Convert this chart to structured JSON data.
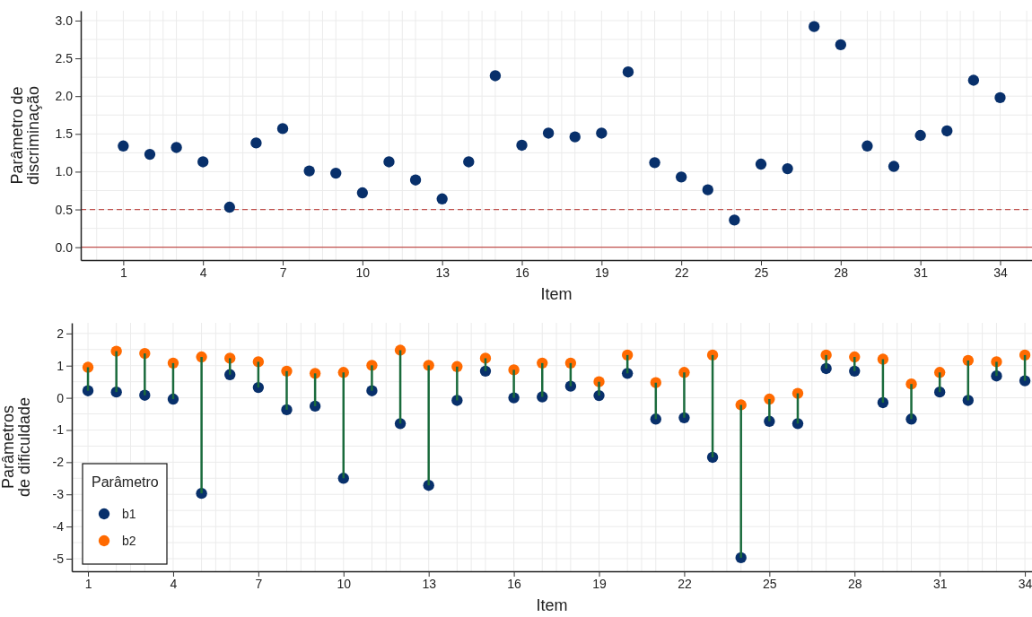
{
  "chart_data": [
    {
      "type": "scatter",
      "ylabel": "Parâmetro de\ndiscriminação",
      "xlabel": "Item",
      "x": [
        1,
        2,
        3,
        4,
        5,
        6,
        7,
        8,
        9,
        10,
        11,
        12,
        13,
        14,
        15,
        16,
        17,
        18,
        19,
        20,
        21,
        22,
        23,
        24,
        25,
        26,
        27,
        28,
        29,
        30,
        31,
        32,
        33,
        34
      ],
      "values": [
        1.34,
        1.23,
        1.32,
        1.13,
        0.53,
        1.38,
        1.57,
        1.01,
        0.98,
        0.72,
        1.13,
        0.89,
        0.64,
        1.13,
        2.27,
        1.35,
        1.51,
        1.46,
        1.51,
        2.32,
        1.12,
        0.93,
        0.76,
        0.36,
        1.1,
        1.04,
        2.92,
        2.68,
        1.34,
        1.07,
        1.48,
        1.54,
        2.21,
        1.98
      ],
      "color": "#08306b",
      "marker": "circle",
      "xlim": [
        -0.6,
        35.2
      ],
      "xticks": [
        1,
        4,
        7,
        10,
        13,
        16,
        19,
        22,
        25,
        28,
        31,
        34
      ],
      "ylim": [
        -0.17,
        3.13
      ],
      "yticks": [
        {
          "value": 0,
          "label": "0.0"
        },
        {
          "value": 0.5,
          "label": "0.5"
        },
        {
          "value": 1,
          "label": "1.0"
        },
        {
          "value": 1.5,
          "label": "1.5"
        },
        {
          "value": 2,
          "label": "2.0"
        },
        {
          "value": 2.5,
          "label": "2.5"
        },
        {
          "value": 3,
          "label": "3.0"
        }
      ],
      "grid": true,
      "ref_lines": [
        {
          "axis": "y",
          "value": 0,
          "color": "#c0504d",
          "line_style": "solid"
        },
        {
          "axis": "y",
          "value": 0.5,
          "color": "#c0504d",
          "line_style": "dashed"
        }
      ]
    },
    {
      "type": "scatter",
      "ylabel": "Parâmetros\nde dificuldade",
      "xlabel": "Item",
      "legend_title": "Parâmetro",
      "legend": "bottom left",
      "marker": "circle",
      "grid": true,
      "x": [
        1,
        2,
        3,
        4,
        5,
        6,
        7,
        8,
        9,
        10,
        11,
        12,
        13,
        14,
        15,
        16,
        17,
        18,
        19,
        20,
        21,
        22,
        23,
        24,
        25,
        26,
        27,
        28,
        29,
        30,
        31,
        32,
        33,
        34
      ],
      "xlim": [
        0.43,
        34.25
      ],
      "xticks": [
        1,
        4,
        7,
        10,
        13,
        16,
        19,
        22,
        25,
        28,
        31,
        34
      ],
      "ylim": [
        -5.39,
        2.33
      ],
      "yticks": [
        -5,
        -4,
        -3,
        -2,
        -1,
        0,
        1,
        2
      ],
      "series": [
        {
          "name": "b1",
          "color": "#08306b",
          "values": [
            0.22,
            0.18,
            0.08,
            -0.04,
            -2.97,
            0.72,
            0.32,
            -0.37,
            -0.26,
            -2.5,
            0.22,
            -0.8,
            -2.72,
            -0.08,
            0.83,
            0.0,
            0.03,
            0.36,
            0.07,
            0.76,
            -0.66,
            -0.62,
            -1.85,
            -4.97,
            -0.73,
            -0.8,
            0.91,
            0.83,
            -0.15,
            -0.66,
            0.18,
            -0.08,
            0.68,
            0.53
          ],
          "errors": [
            [
              0.22,
              0.95
            ],
            [
              0.18,
              1.45
            ],
            [
              0.08,
              1.38
            ],
            [
              -0.04,
              1.08
            ],
            [
              -2.97,
              1.27
            ],
            [
              0.72,
              1.23
            ],
            [
              0.32,
              1.12
            ],
            [
              -0.37,
              0.83
            ],
            [
              -0.26,
              0.76
            ],
            [
              -2.5,
              0.79
            ],
            [
              0.22,
              1.01
            ],
            [
              -0.8,
              1.48
            ],
            [
              -2.72,
              1.01
            ],
            [
              -0.08,
              0.97
            ],
            [
              0.83,
              1.23
            ],
            [
              0.0,
              0.87
            ],
            [
              0.03,
              1.08
            ],
            [
              0.36,
              1.08
            ],
            [
              0.07,
              0.5
            ],
            [
              0.76,
              1.33
            ],
            [
              -0.66,
              0.47
            ],
            [
              -0.62,
              0.79
            ],
            [
              -1.85,
              1.33
            ],
            [
              -4.97,
              -0.22
            ],
            [
              -0.73,
              -0.04
            ],
            [
              -0.8,
              0.14
            ],
            [
              0.91,
              1.33
            ],
            [
              0.83,
              1.27
            ],
            [
              -0.15,
              1.2
            ],
            [
              -0.66,
              0.43
            ],
            [
              0.18,
              0.79
            ],
            [
              -0.08,
              1.16
            ],
            [
              0.68,
              1.12
            ],
            [
              0.53,
              1.33
            ]
          ]
        },
        {
          "name": "b2",
          "color": "#ff6a00",
          "values": [
            0.95,
            1.45,
            1.38,
            1.08,
            1.27,
            1.23,
            1.12,
            0.83,
            0.76,
            0.79,
            1.01,
            1.48,
            1.01,
            0.97,
            1.23,
            0.87,
            1.08,
            1.08,
            0.5,
            1.33,
            0.47,
            0.79,
            1.33,
            -0.22,
            -0.04,
            0.14,
            1.33,
            1.27,
            1.2,
            0.43,
            0.79,
            1.16,
            1.12,
            1.33
          ]
        }
      ]
    }
  ]
}
